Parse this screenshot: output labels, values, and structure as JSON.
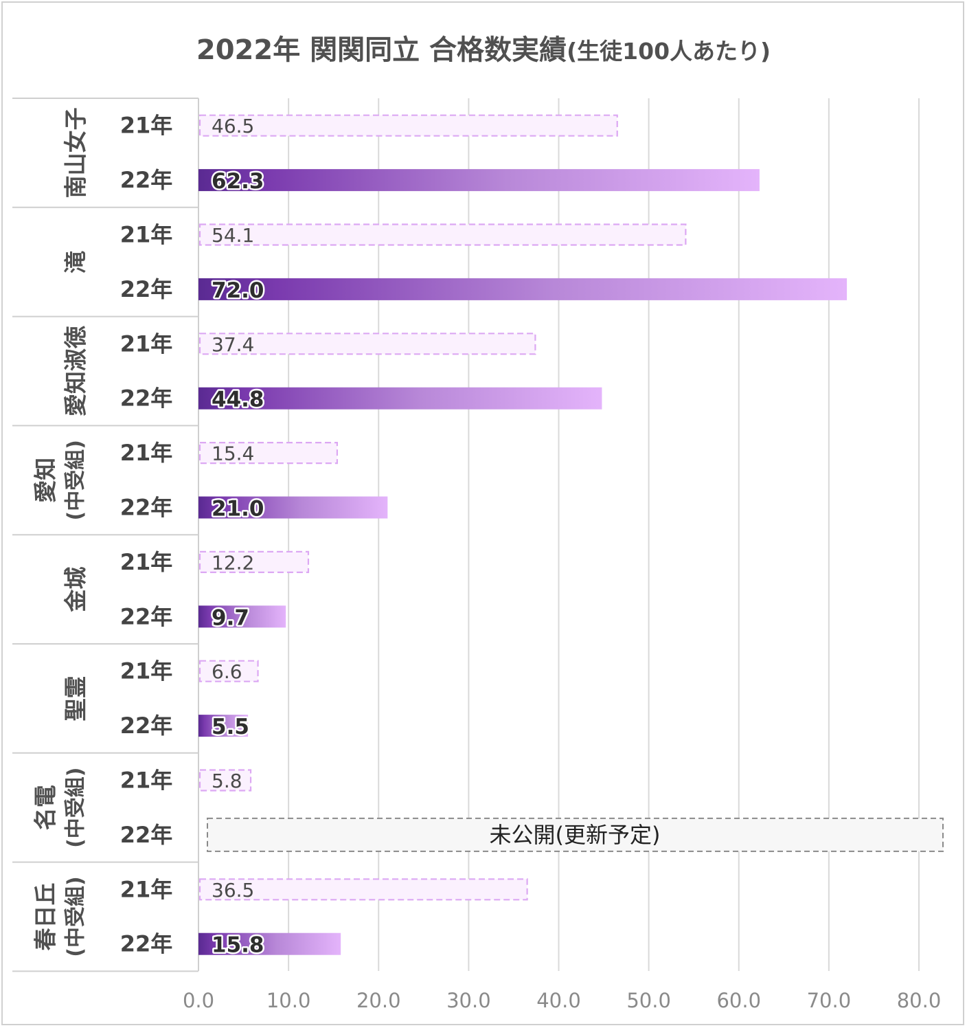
{
  "chart_data": {
    "type": "bar",
    "orientation": "horizontal",
    "title": "2022年 関関同立 合格数実績",
    "subtitle": "(生徒100人あたり)",
    "xlim": [
      0,
      80
    ],
    "xticks": [
      "0.0",
      "10.0",
      "20.0",
      "30.0",
      "40.0",
      "50.0",
      "60.0",
      "70.0",
      "80.0"
    ],
    "grid": true,
    "series": [
      {
        "name": "21年",
        "style": "dashed-outline"
      },
      {
        "name": "22年",
        "style": "gradient-fill"
      }
    ],
    "groups": [
      {
        "school": "南山女子",
        "rows": [
          {
            "year": "21年",
            "value": 46.5,
            "label": "46.5"
          },
          {
            "year": "22年",
            "value": 62.3,
            "label": "62.3"
          }
        ]
      },
      {
        "school": "滝",
        "rows": [
          {
            "year": "21年",
            "value": 54.1,
            "label": "54.1"
          },
          {
            "year": "22年",
            "value": 72.0,
            "label": "72.0"
          }
        ]
      },
      {
        "school": "愛知淑徳",
        "rows": [
          {
            "year": "21年",
            "value": 37.4,
            "label": "37.4"
          },
          {
            "year": "22年",
            "value": 44.8,
            "label": "44.8"
          }
        ]
      },
      {
        "school": "愛知",
        "school_sub": "(中受組)",
        "rows": [
          {
            "year": "21年",
            "value": 15.4,
            "label": "15.4"
          },
          {
            "year": "22年",
            "value": 21.0,
            "label": "21.0"
          }
        ]
      },
      {
        "school": "金城",
        "rows": [
          {
            "year": "21年",
            "value": 12.2,
            "label": "12.2"
          },
          {
            "year": "22年",
            "value": 9.7,
            "label": "9.7"
          }
        ]
      },
      {
        "school": "聖霊",
        "rows": [
          {
            "year": "21年",
            "value": 6.6,
            "label": "6.6"
          },
          {
            "year": "22年",
            "value": 5.5,
            "label": "5.5"
          }
        ]
      },
      {
        "school": "名電",
        "school_sub": "(中受組)",
        "rows": [
          {
            "year": "21年",
            "value": 5.8,
            "label": "5.8"
          },
          {
            "year": "22年",
            "value": null,
            "label": "未公開(更新予定)"
          }
        ]
      },
      {
        "school": "春日丘",
        "school_sub": "(中受組)",
        "rows": [
          {
            "year": "21年",
            "value": 36.5,
            "label": "36.5"
          },
          {
            "year": "22年",
            "value": 15.8,
            "label": "15.8"
          }
        ]
      }
    ]
  }
}
